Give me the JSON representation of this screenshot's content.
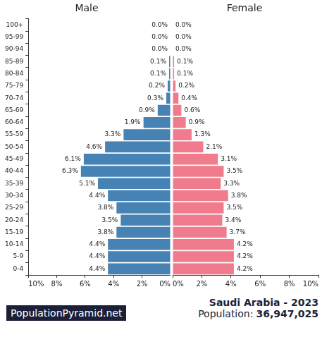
{
  "chart_data": [
    {
      "type": "bar",
      "title": "Male",
      "orientation": "horizontal",
      "categories": [
        "100+",
        "95-99",
        "90-94",
        "85-89",
        "80-84",
        "75-79",
        "70-74",
        "65-69",
        "60-64",
        "55-59",
        "50-54",
        "45-49",
        "40-44",
        "35-39",
        "30-34",
        "25-29",
        "20-24",
        "15-19",
        "10-14",
        "5-9",
        "0-4"
      ],
      "values": [
        0.0,
        0.0,
        0.0,
        0.1,
        0.1,
        0.2,
        0.3,
        0.9,
        1.9,
        3.3,
        4.6,
        6.1,
        6.3,
        5.1,
        4.4,
        3.8,
        3.5,
        3.8,
        4.4,
        4.4,
        4.4
      ],
      "value_labels": [
        "0.0%",
        "0.0%",
        "0.0%",
        "0.1%",
        "0.1%",
        "0.2%",
        "0.3%",
        "0.9%",
        "1.9%",
        "3.3%",
        "4.6%",
        "6.1%",
        "6.3%",
        "5.1%",
        "4.4%",
        "3.8%",
        "3.5%",
        "3.8%",
        "4.4%",
        "4.4%",
        "4.4%"
      ],
      "color": "#4682b4",
      "data_labels": true,
      "grid": false,
      "tick_labels": true,
      "xlim": [
        0,
        10
      ],
      "xticks": [
        {
          "value": 0,
          "label": "0%"
        },
        {
          "value": 2,
          "label": "2%"
        },
        {
          "value": 4,
          "label": "4%"
        },
        {
          "value": 6,
          "label": "6%"
        },
        {
          "value": 8,
          "label": "8%"
        },
        {
          "value": 10,
          "label": "10%"
        }
      ]
    },
    {
      "type": "bar",
      "title": "Female",
      "orientation": "horizontal",
      "categories": [
        "100+",
        "95-99",
        "90-94",
        "85-89",
        "80-84",
        "75-79",
        "70-74",
        "65-69",
        "60-64",
        "55-59",
        "50-54",
        "45-49",
        "40-44",
        "35-39",
        "30-34",
        "25-29",
        "20-24",
        "15-19",
        "10-14",
        "5-9",
        "0-4"
      ],
      "values": [
        0.0,
        0.0,
        0.0,
        0.1,
        0.1,
        0.2,
        0.4,
        0.6,
        0.9,
        1.3,
        2.1,
        3.1,
        3.5,
        3.3,
        3.8,
        3.5,
        3.4,
        3.7,
        4.2,
        4.2,
        4.2
      ],
      "value_labels": [
        "0.0%",
        "0.0%",
        "0.0%",
        "0.1%",
        "0.1%",
        "0.2%",
        "0.4%",
        "0.6%",
        "0.9%",
        "1.3%",
        "2.1%",
        "3.1%",
        "3.5%",
        "3.3%",
        "3.8%",
        "3.5%",
        "3.4%",
        "3.7%",
        "4.2%",
        "4.2%",
        "4.2%"
      ],
      "color": "#ef7b8c",
      "data_labels": true,
      "grid": false,
      "tick_labels": "x",
      "xlim": [
        0,
        10
      ],
      "xticks": [
        {
          "value": 0,
          "label": "0%"
        },
        {
          "value": 2,
          "label": "2%"
        },
        {
          "value": 4,
          "label": "4%"
        },
        {
          "value": 6,
          "label": "6%"
        },
        {
          "value": 8,
          "label": "8%"
        },
        {
          "value": 10,
          "label": "10%"
        }
      ]
    }
  ],
  "footer": {
    "source": "PopulationPyramid.net",
    "title": "Saudi Arabia - 2023",
    "population_label": "Population:",
    "population": "36,947,025"
  }
}
